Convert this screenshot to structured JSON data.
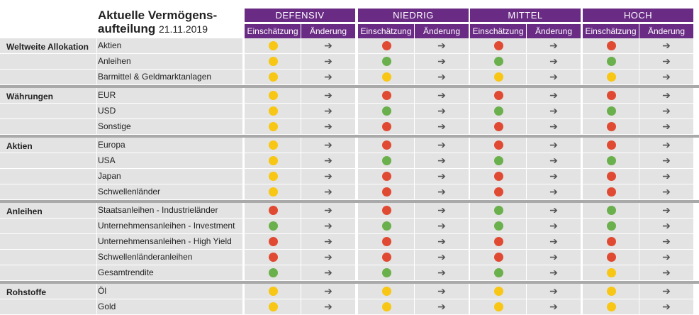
{
  "title": {
    "line1": "Aktuelle Vermögens-",
    "line2": "aufteilung",
    "date": "21.11.2019"
  },
  "profiles": [
    "DEFENSIV",
    "NIEDRIG",
    "MITTEL",
    "HOCH"
  ],
  "sub_headers": {
    "assessment": "Einschätzung",
    "change": "Änderung"
  },
  "arrow_symbol": "➔",
  "colors": {
    "red": "#e04a32",
    "green": "#6ab04c",
    "yellow": "#f8c614",
    "header": "#6a2b85"
  },
  "sections": [
    {
      "name": "Weltweite Allokation",
      "rows": [
        {
          "label": "Aktien",
          "ratings": [
            "yellow",
            "red",
            "red",
            "red"
          ]
        },
        {
          "label": "Anleihen",
          "ratings": [
            "yellow",
            "green",
            "green",
            "green"
          ]
        },
        {
          "label": "Barmittel & Geldmarktanlagen",
          "ratings": [
            "yellow",
            "yellow",
            "yellow",
            "yellow"
          ]
        }
      ]
    },
    {
      "name": "Währungen",
      "rows": [
        {
          "label": "EUR",
          "ratings": [
            "yellow",
            "red",
            "red",
            "red"
          ]
        },
        {
          "label": "USD",
          "ratings": [
            "yellow",
            "green",
            "green",
            "green"
          ]
        },
        {
          "label": "Sonstige",
          "ratings": [
            "yellow",
            "red",
            "red",
            "red"
          ]
        }
      ]
    },
    {
      "name": "Aktien",
      "rows": [
        {
          "label": "Europa",
          "ratings": [
            "yellow",
            "red",
            "red",
            "red"
          ]
        },
        {
          "label": "USA",
          "ratings": [
            "yellow",
            "green",
            "green",
            "green"
          ]
        },
        {
          "label": "Japan",
          "ratings": [
            "yellow",
            "red",
            "red",
            "red"
          ]
        },
        {
          "label": "Schwellenländer",
          "ratings": [
            "yellow",
            "red",
            "red",
            "red"
          ]
        }
      ]
    },
    {
      "name": "Anleihen",
      "rows": [
        {
          "label": "Staatsanleihen - Industrieländer",
          "ratings": [
            "red",
            "red",
            "green",
            "green"
          ]
        },
        {
          "label": "Unternehmensanleihen - Investment Grade",
          "ratings": [
            "green",
            "green",
            "green",
            "green"
          ]
        },
        {
          "label": "Unternehmensanleihen - High Yield",
          "ratings": [
            "red",
            "red",
            "red",
            "red"
          ]
        },
        {
          "label": "Schwellenländeranleihen",
          "ratings": [
            "red",
            "red",
            "red",
            "red"
          ]
        },
        {
          "label": "Gesamtrendite",
          "ratings": [
            "green",
            "green",
            "green",
            "yellow"
          ]
        }
      ]
    },
    {
      "name": "Rohstoffe",
      "rows": [
        {
          "label": "Öl",
          "ratings": [
            "yellow",
            "yellow",
            "yellow",
            "yellow"
          ]
        },
        {
          "label": "Gold",
          "ratings": [
            "yellow",
            "yellow",
            "yellow",
            "yellow"
          ]
        }
      ]
    }
  ]
}
